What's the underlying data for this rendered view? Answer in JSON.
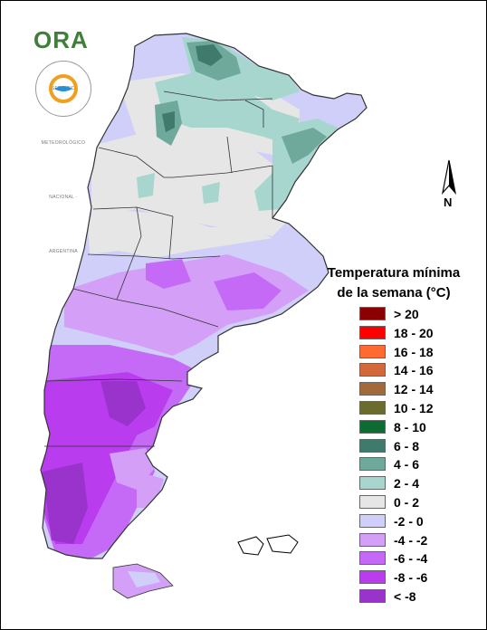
{
  "logo": {
    "text": "ORA",
    "seal_text": "SERVICIO METEOROLÓGICO NACIONAL · ARGENTINA"
  },
  "north_arrow": {
    "label": "N"
  },
  "legend": {
    "title_line1": "Temperatura mínima",
    "title_line2": "de la semana (°C)",
    "items": [
      {
        "label": "> 20",
        "color": "#8b0000"
      },
      {
        "label": "18 - 20",
        "color": "#ff0000"
      },
      {
        "label": "16 - 18",
        "color": "#ff6a33"
      },
      {
        "label": "14 - 16",
        "color": "#d2693b"
      },
      {
        "label": "12 - 14",
        "color": "#a26a3a"
      },
      {
        "label": "10 - 12",
        "color": "#6b6b30"
      },
      {
        "label": "8 - 10",
        "color": "#0d6b33"
      },
      {
        "label": "6 - 8",
        "color": "#3f7a6d"
      },
      {
        "label": "4 - 6",
        "color": "#6fa99c"
      },
      {
        "label": "2 - 4",
        "color": "#a7d6cf"
      },
      {
        "label": "0 - 2",
        "color": "#e6e6e6"
      },
      {
        "label": "-2 - 0",
        "color": "#cfcffa"
      },
      {
        "label": "-4 - -2",
        "color": "#d4a0f7"
      },
      {
        "label": "-6 - -4",
        "color": "#c56af7"
      },
      {
        "label": "-8 - -6",
        "color": "#b93cef"
      },
      {
        "label": "< -8",
        "color": "#9933cc"
      }
    ]
  }
}
